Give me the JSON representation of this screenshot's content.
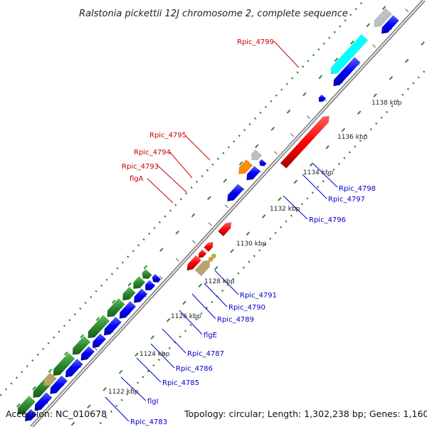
{
  "title": "Ralstonia pickettii 12J chromosome 2, complete sequence",
  "footer": {
    "accession": "Accession: NC_010678",
    "summary": "Topology: circular; Length: 1,302,238 bp; Genes: 1,160"
  },
  "ticks": [
    "1122 kbp",
    "1124 kbp",
    "1126 kbp",
    "1128 kbp",
    "1130 kbp",
    "1132 kbp",
    "1134 kbp",
    "1136 kbp",
    "1138 kbp"
  ],
  "labels": [
    {
      "text": "Rpic_4799",
      "strand": "forward"
    },
    {
      "text": "Rpic_4795",
      "strand": "forward"
    },
    {
      "text": "Rpic_4794",
      "strand": "forward"
    },
    {
      "text": "Rpic_4793",
      "strand": "forward"
    },
    {
      "text": "flgA",
      "strand": "forward"
    },
    {
      "text": "Rpic_4798",
      "strand": "reverse"
    },
    {
      "text": "Rpic_4797",
      "strand": "reverse"
    },
    {
      "text": "Rpic_4796",
      "strand": "reverse"
    },
    {
      "text": "Rpic_4791",
      "strand": "reverse"
    },
    {
      "text": "Rpic_4790",
      "strand": "reverse"
    },
    {
      "text": "Rpic_4789",
      "strand": "reverse"
    },
    {
      "text": "flgE",
      "strand": "reverse"
    },
    {
      "text": "Rpic_4787",
      "strand": "reverse"
    },
    {
      "text": "Rpic_4786",
      "strand": "reverse"
    },
    {
      "text": "Rpic_4785",
      "strand": "reverse"
    },
    {
      "text": "flgI",
      "strand": "reverse"
    },
    {
      "text": "Rpic_4783",
      "strand": "reverse"
    }
  ],
  "colors": {
    "forward_gene": "#ff0000",
    "reverse_gene": "#0000ff",
    "green_track": "#2e8b2e",
    "cyan": "#00ffff",
    "orange": "#ff8c00",
    "grey": "#c0c0c0",
    "olive": "#b8a468",
    "backbone": "#888888",
    "dots": "#2e8b2e"
  }
}
